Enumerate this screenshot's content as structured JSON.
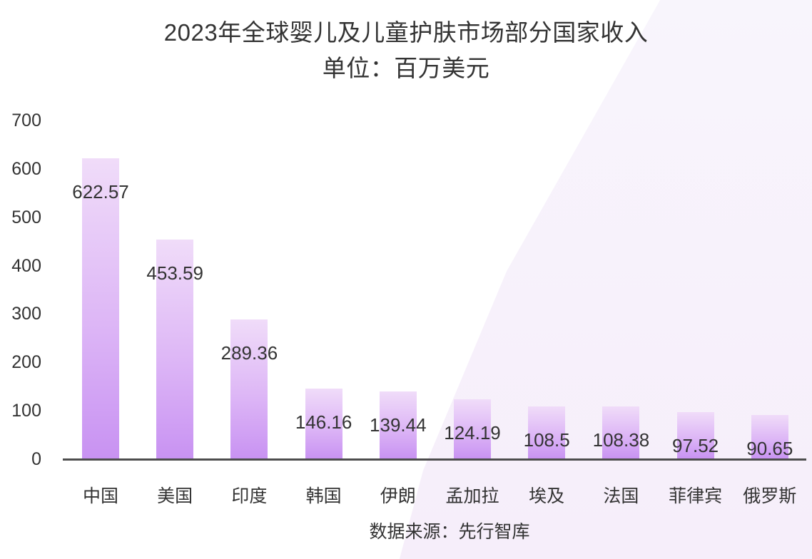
{
  "chart_data": {
    "type": "bar",
    "title": "2023年全球婴儿及儿童护肤市场部分国家收入",
    "subtitle": "单位：百万美元",
    "categories": [
      "中国",
      "美国",
      "印度",
      "韩国",
      "伊朗",
      "孟加拉",
      "埃及",
      "法国",
      "菲律宾",
      "俄罗斯"
    ],
    "values": [
      622.57,
      453.59,
      289.36,
      146.16,
      139.44,
      124.19,
      108.5,
      108.38,
      97.52,
      90.65
    ],
    "value_labels": [
      "622.57",
      "453.59",
      "289.36",
      "146.16",
      "139.44",
      "124.19",
      "108.5",
      "108.38",
      "97.52",
      "90.65"
    ],
    "xlabel": "",
    "ylabel": "",
    "ylim": [
      0,
      700
    ],
    "yticks": [
      0,
      100,
      200,
      300,
      400,
      500,
      600,
      700
    ],
    "grid": "off",
    "legend": "none",
    "value_label_position": "inside-top",
    "source": "数据来源：先行智库",
    "colors": {
      "bar_gradient_top": "#f0dcf9",
      "bar_gradient_bottom": "#c892f2",
      "axis_line": "#4d4d4d",
      "text": "#333333",
      "background_band": "#f7f1fb"
    }
  }
}
